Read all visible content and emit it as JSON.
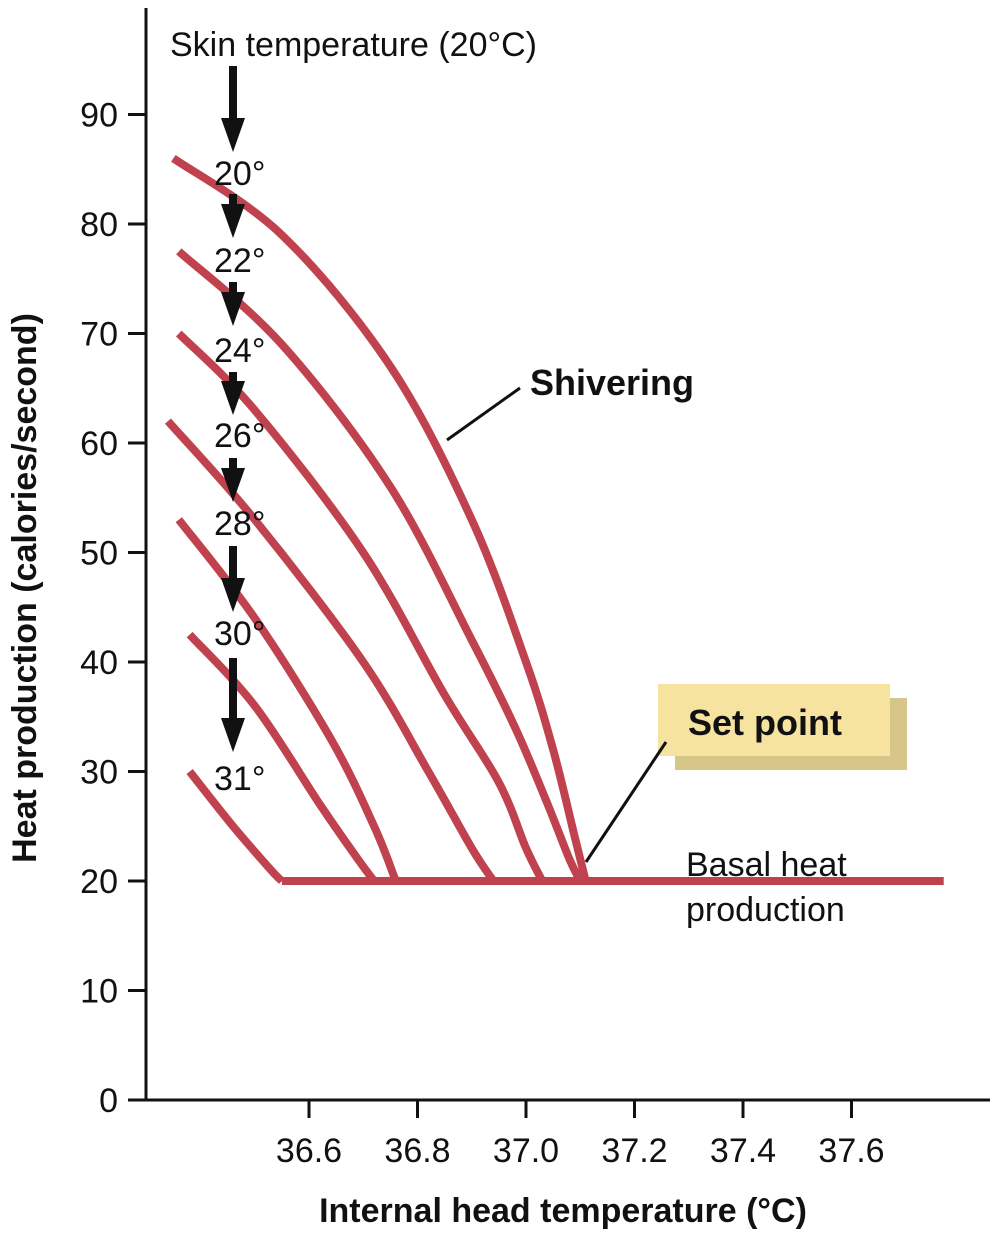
{
  "chart_data": {
    "type": "line",
    "xlabel": "Internal head temperature (°C)",
    "ylabel": "Heat production (calories/second)",
    "xticks": [
      "36.6",
      "36.8",
      "37.0",
      "37.2",
      "37.4",
      "37.6"
    ],
    "yticks": [
      "0",
      "10",
      "20",
      "30",
      "40",
      "50",
      "60",
      "70",
      "80",
      "90"
    ],
    "xlim": [
      36.3,
      37.85
    ],
    "ylim": [
      0,
      92
    ],
    "skin_temperature_label": "Skin temperature (20°C)",
    "series": [
      {
        "name": "20°",
        "x": [
          36.35,
          36.55,
          36.75,
          36.9,
          37.0,
          37.05,
          37.09,
          37.11
        ],
        "y": [
          86,
          79,
          67,
          53,
          40,
          32,
          24,
          20
        ]
      },
      {
        "name": "22°",
        "x": [
          36.36,
          36.55,
          36.75,
          36.9,
          36.98,
          37.04,
          37.08,
          37.1
        ],
        "y": [
          77.5,
          69,
          56,
          42,
          34,
          27,
          22,
          20
        ]
      },
      {
        "name": "24°",
        "x": [
          36.36,
          36.5,
          36.7,
          36.85,
          36.95,
          37.0,
          37.03
        ],
        "y": [
          70,
          63,
          50,
          37,
          29,
          23,
          20
        ]
      },
      {
        "name": "26°",
        "x": [
          36.34,
          36.5,
          36.7,
          36.82,
          36.9,
          36.94
        ],
        "y": [
          62,
          53,
          40,
          30,
          23,
          20
        ]
      },
      {
        "name": "28°",
        "x": [
          36.36,
          36.5,
          36.64,
          36.72,
          36.76
        ],
        "y": [
          53,
          44,
          33,
          25,
          20
        ]
      },
      {
        "name": "30°",
        "x": [
          36.38,
          36.5,
          36.62,
          36.69,
          36.72
        ],
        "y": [
          42.5,
          36,
          27,
          22,
          20
        ]
      },
      {
        "name": "31°",
        "x": [
          36.38,
          36.46,
          36.53,
          36.55
        ],
        "y": [
          30,
          25,
          21,
          20
        ]
      },
      {
        "name": "Basal heat production",
        "x": [
          36.55,
          37.77
        ],
        "y": [
          20,
          20
        ]
      }
    ],
    "annotations": {
      "shivering": "Shivering",
      "set_point": "Set point",
      "basal_line1": "Basal heat",
      "basal_line2": "production"
    },
    "colors": {
      "curve": "#c0424f",
      "axis": "#111111",
      "set_point_box": "#f6e3a0",
      "set_point_shadow": "#d7c68a"
    }
  }
}
